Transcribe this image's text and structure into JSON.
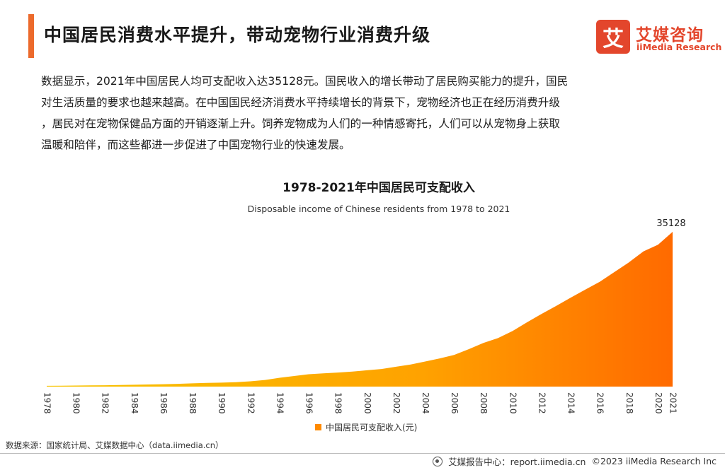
{
  "header": {
    "title": "中国居民消费水平提升，带动宠物行业消费升级"
  },
  "logo": {
    "mark": "艾",
    "name_cn": "艾媒咨询",
    "name_en": "iiMedia Research"
  },
  "intro": {
    "lines": [
      "数据显示，2021年中国居民人均可支配收入达35128元。国民收入的增长带动了居民购买能力的提升，国民",
      "对生活质量的要求也越来越高。在中国国民经济消费水平持续增长的背景下，宠物经济也正在经历消费升级",
      "，居民对在宠物保健品方面的开销逐渐上升。饲养宠物成为人们的一种情感寄托，人们可以从宠物身上获取",
      "温暖和陪伴，而这些都进一步促进了中国宠物行业的快速发展。"
    ]
  },
  "chart_data": {
    "type": "area",
    "title": "1978-2021年中国居民可支配收入",
    "subtitle": "Disposable income of Chinese residents from 1978 to 2021",
    "series": [
      {
        "name": "中国居民可支配收入(元)",
        "x": [
          1978,
          1979,
          1980,
          1981,
          1982,
          1983,
          1984,
          1985,
          1986,
          1987,
          1988,
          1989,
          1990,
          1991,
          1992,
          1993,
          1994,
          1995,
          1996,
          1997,
          1998,
          1999,
          2000,
          2001,
          2002,
          2003,
          2004,
          2005,
          2006,
          2007,
          2008,
          2009,
          2010,
          2011,
          2012,
          2013,
          2014,
          2015,
          2016,
          2017,
          2018,
          2019,
          2020,
          2021
        ],
        "values": [
          171,
          200,
          247,
          275,
          310,
          350,
          410,
          480,
          540,
          620,
          740,
          830,
          900,
          1000,
          1200,
          1500,
          2000,
          2400,
          2800,
          3000,
          3200,
          3400,
          3700,
          4000,
          4500,
          5000,
          5700,
          6400,
          7200,
          8500,
          9900,
          11000,
          12600,
          14600,
          16500,
          18300,
          20200,
          22000,
          23800,
          26000,
          28200,
          30700,
          32200,
          35128
        ]
      }
    ],
    "xlabel": "",
    "ylabel": "",
    "ylim": [
      0,
      35128
    ],
    "tick_labels": [
      "1978",
      "1980",
      "1982",
      "1984",
      "1986",
      "1988",
      "1990",
      "1992",
      "1994",
      "1996",
      "1998",
      "2000",
      "2002",
      "2004",
      "2006",
      "2008",
      "2010",
      "2012",
      "2014",
      "2016",
      "2018",
      "2020",
      "2021"
    ],
    "annotation": "35128",
    "legend_position": "bottom",
    "grid": false,
    "color_start": "#f8c400",
    "color_end": "#ff6a00"
  },
  "footer": {
    "source": "数据来源：国家统计局、艾媒数据中心（data.iimedia.cn）",
    "report_center": "艾媒报告中心：report.iimedia.cn",
    "copyright": "©2023  iiMedia Research Inc"
  }
}
